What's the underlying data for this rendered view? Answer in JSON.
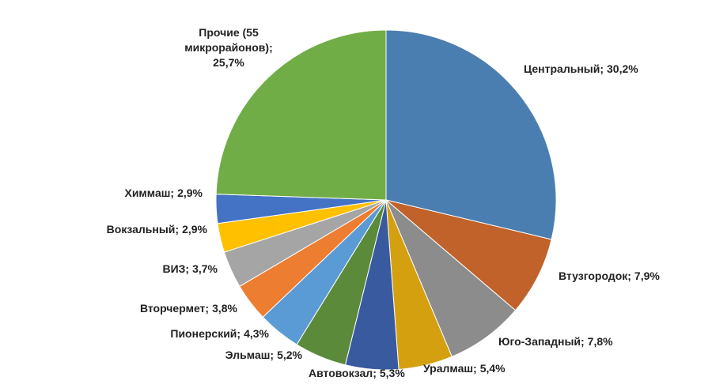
{
  "chart_data": {
    "type": "pie",
    "categories": [
      "Центральный;",
      "Втузгородок;",
      "Юго-Западный;",
      "Уралмаш;",
      "Автовокзал;",
      "Эльмаш;",
      "Пионерский;",
      "Вторчермет;",
      "ВИЗ;",
      "Вокзальный;",
      "Химмаш;",
      "Прочие (55 микрорайонов);"
    ],
    "values": [
      30.2,
      7.9,
      7.8,
      5.4,
      5.3,
      5.2,
      4.3,
      3.8,
      3.7,
      2.9,
      2.9,
      25.7
    ],
    "value_labels": [
      "30,2%",
      "7,9%",
      "7,8%",
      "5,4%",
      "5,3%",
      "5,2%",
      "4,3%",
      "3,8%",
      "3,7%",
      "2,9%",
      "2,9%",
      "25,7%"
    ],
    "colors": [
      "#4a7eb0",
      "#c0622a",
      "#8c8c8c",
      "#d4a010",
      "#3a5aa0",
      "#5a8a3a",
      "#5b9bd5",
      "#ed7d31",
      "#a5a5a5",
      "#ffc000",
      "#4472c4",
      "#70ad47"
    ]
  }
}
